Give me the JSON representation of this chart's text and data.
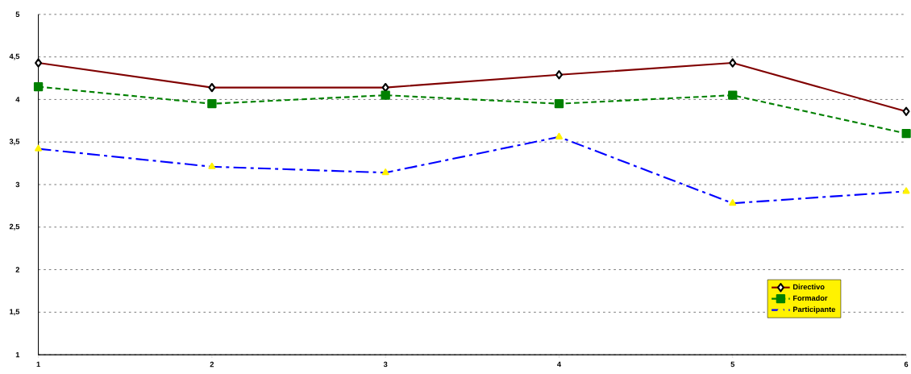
{
  "chart_data": {
    "type": "line",
    "x": [
      1,
      2,
      3,
      4,
      5,
      6
    ],
    "xlim": [
      1,
      6
    ],
    "xticks": [
      1,
      2,
      3,
      4,
      5,
      6
    ],
    "ylim": [
      1,
      5
    ],
    "yticks": [
      1,
      {
        "value": 1.5,
        "label": "1,5"
      },
      2,
      {
        "value": 2.5,
        "label": "2,5"
      },
      3,
      {
        "value": 3.5,
        "label": "3,5"
      },
      4,
      {
        "value": 4.5,
        "label": "4,5"
      },
      5
    ],
    "grid": "y",
    "legend": "bottom right",
    "series": [
      {
        "name": "Directivo",
        "color": "#800000",
        "marker": "diamond",
        "line_style": "solid",
        "values": [
          4.43,
          4.14,
          4.14,
          4.29,
          4.43,
          3.86
        ]
      },
      {
        "name": "Formador",
        "color": "#008000",
        "marker": "square",
        "line_style": "dashed",
        "values": [
          4.15,
          3.95,
          4.05,
          3.95,
          4.05,
          3.6
        ]
      },
      {
        "name": "Participante",
        "color": "#0000ff",
        "marker": "triangle",
        "line_style": "dashdot",
        "values": [
          3.42,
          3.21,
          3.14,
          3.56,
          2.78,
          2.92
        ]
      }
    ]
  }
}
